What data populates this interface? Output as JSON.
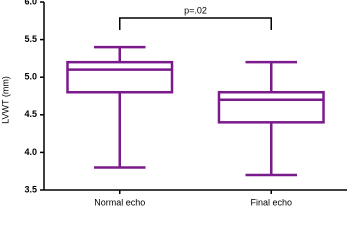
{
  "chart_data": {
    "type": "box",
    "y_label": "LVWT (mm)",
    "categories": [
      "Normal echo",
      "Final echo"
    ],
    "whisker_low": [
      3.8,
      3.7
    ],
    "q1": [
      4.8,
      4.4
    ],
    "median": [
      5.1,
      4.7
    ],
    "q3": [
      5.2,
      4.8
    ],
    "whisker_high": [
      5.4,
      5.2
    ],
    "color": "#7b1a8c",
    "annotation": "p=.02",
    "ylim": [
      3.5,
      6.0
    ],
    "yticks": [
      3.5,
      {
        "value": 4.0,
        "label": "4.0"
      },
      4.5,
      {
        "value": 5.0,
        "label": "5.0"
      },
      5.5,
      {
        "value": 6.0,
        "label": "6.0"
      }
    ]
  }
}
